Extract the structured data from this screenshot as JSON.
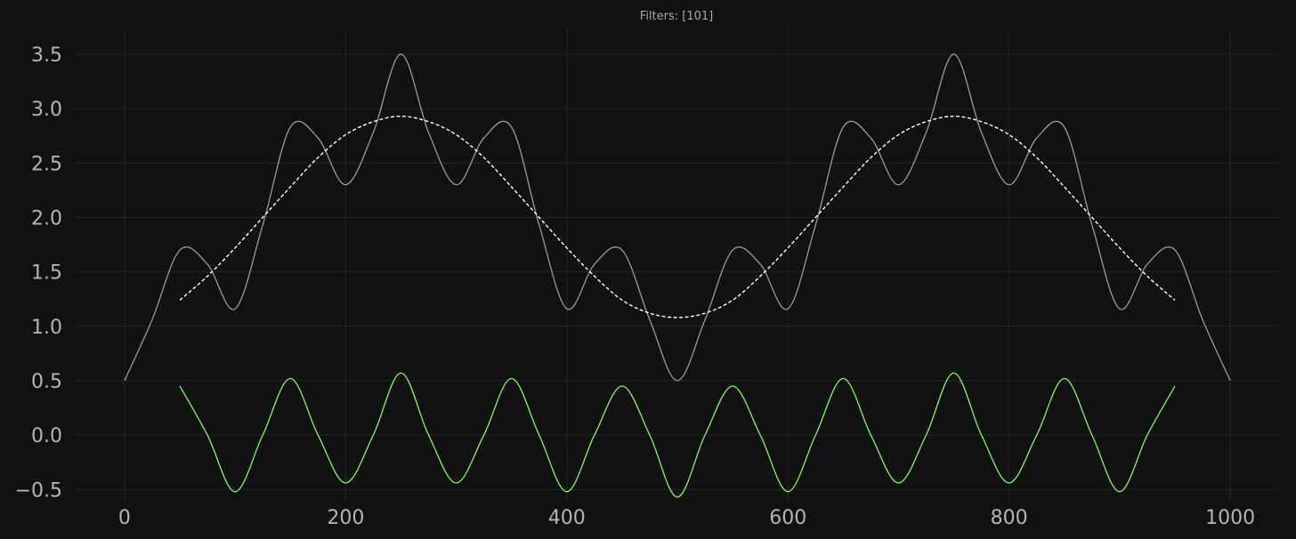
{
  "chart_data": {
    "type": "line",
    "title": "Filters: [101]",
    "xlabel": "",
    "ylabel": "",
    "xlim": [
      -45,
      1045
    ],
    "ylim": [
      -0.62,
      3.72
    ],
    "xticks": [
      0,
      200,
      400,
      600,
      800,
      1000
    ],
    "xtick_labels": [
      "0",
      "200",
      "400",
      "600",
      "800",
      "1000"
    ],
    "yticks": [
      -0.5,
      0.0,
      0.5,
      1.0,
      1.5,
      2.0,
      2.5,
      3.0,
      3.5
    ],
    "ytick_labels": [
      "−0.5",
      "0.0",
      "0.5",
      "1.0",
      "1.5",
      "2.0",
      "2.5",
      "3.0",
      "3.5"
    ],
    "grid": true,
    "background": "#111111",
    "series": [
      {
        "style": "solid",
        "color": "#9a9a9a",
        "x": [
          0,
          25,
          50,
          75,
          100,
          125,
          150,
          175,
          200,
          225,
          250,
          275,
          300,
          325,
          350,
          375,
          400,
          425,
          450,
          475,
          500,
          525,
          550,
          575,
          600,
          625,
          650,
          675,
          700,
          725,
          750,
          775,
          800,
          825,
          850,
          875,
          900,
          925,
          950,
          975,
          1000
        ],
        "y": [
          0.5,
          1.06,
          1.7,
          1.57,
          1.16,
          1.93,
          2.83,
          2.73,
          2.3,
          2.78,
          3.5,
          2.78,
          2.3,
          2.73,
          2.83,
          1.93,
          1.16,
          1.57,
          1.7,
          1.06,
          0.5,
          1.06,
          1.7,
          1.57,
          1.16,
          1.93,
          2.83,
          2.73,
          2.3,
          2.78,
          3.5,
          2.78,
          2.3,
          2.73,
          2.83,
          1.93,
          1.16,
          1.57,
          1.7,
          1.06,
          0.5
        ]
      },
      {
        "style": "dashed",
        "color": "#ffffff",
        "x": [
          50,
          75,
          100,
          125,
          150,
          175,
          200,
          225,
          250,
          275,
          300,
          325,
          350,
          375,
          400,
          425,
          450,
          475,
          500,
          525,
          550,
          575,
          600,
          625,
          650,
          675,
          700,
          725,
          750,
          775,
          800,
          825,
          850,
          875,
          900,
          925,
          950
        ],
        "y": [
          1.24,
          1.46,
          1.72,
          2.0,
          2.28,
          2.55,
          2.76,
          2.88,
          2.93,
          2.88,
          2.76,
          2.55,
          2.28,
          2.0,
          1.72,
          1.46,
          1.24,
          1.12,
          1.08,
          1.12,
          1.24,
          1.46,
          1.72,
          2.0,
          2.28,
          2.55,
          2.76,
          2.88,
          2.93,
          2.88,
          2.76,
          2.55,
          2.28,
          2.0,
          1.72,
          1.46,
          1.24
        ]
      },
      {
        "style": "solid",
        "color": "#7dff5a",
        "x": [
          50,
          75,
          100,
          125,
          150,
          175,
          200,
          225,
          250,
          275,
          300,
          325,
          350,
          375,
          400,
          425,
          450,
          475,
          500,
          525,
          550,
          575,
          600,
          625,
          650,
          675,
          700,
          725,
          750,
          775,
          800,
          825,
          850,
          875,
          900,
          925,
          950
        ],
        "y": [
          0.45,
          0.0,
          -0.52,
          0.0,
          0.52,
          0.0,
          -0.44,
          0.0,
          0.57,
          0.0,
          -0.44,
          0.0,
          0.52,
          0.0,
          -0.52,
          0.0,
          0.45,
          0.0,
          -0.57,
          0.0,
          0.45,
          0.0,
          -0.52,
          0.0,
          0.52,
          0.0,
          -0.44,
          0.0,
          0.57,
          0.0,
          -0.44,
          0.0,
          0.52,
          0.0,
          -0.52,
          0.0,
          0.45
        ]
      }
    ]
  }
}
